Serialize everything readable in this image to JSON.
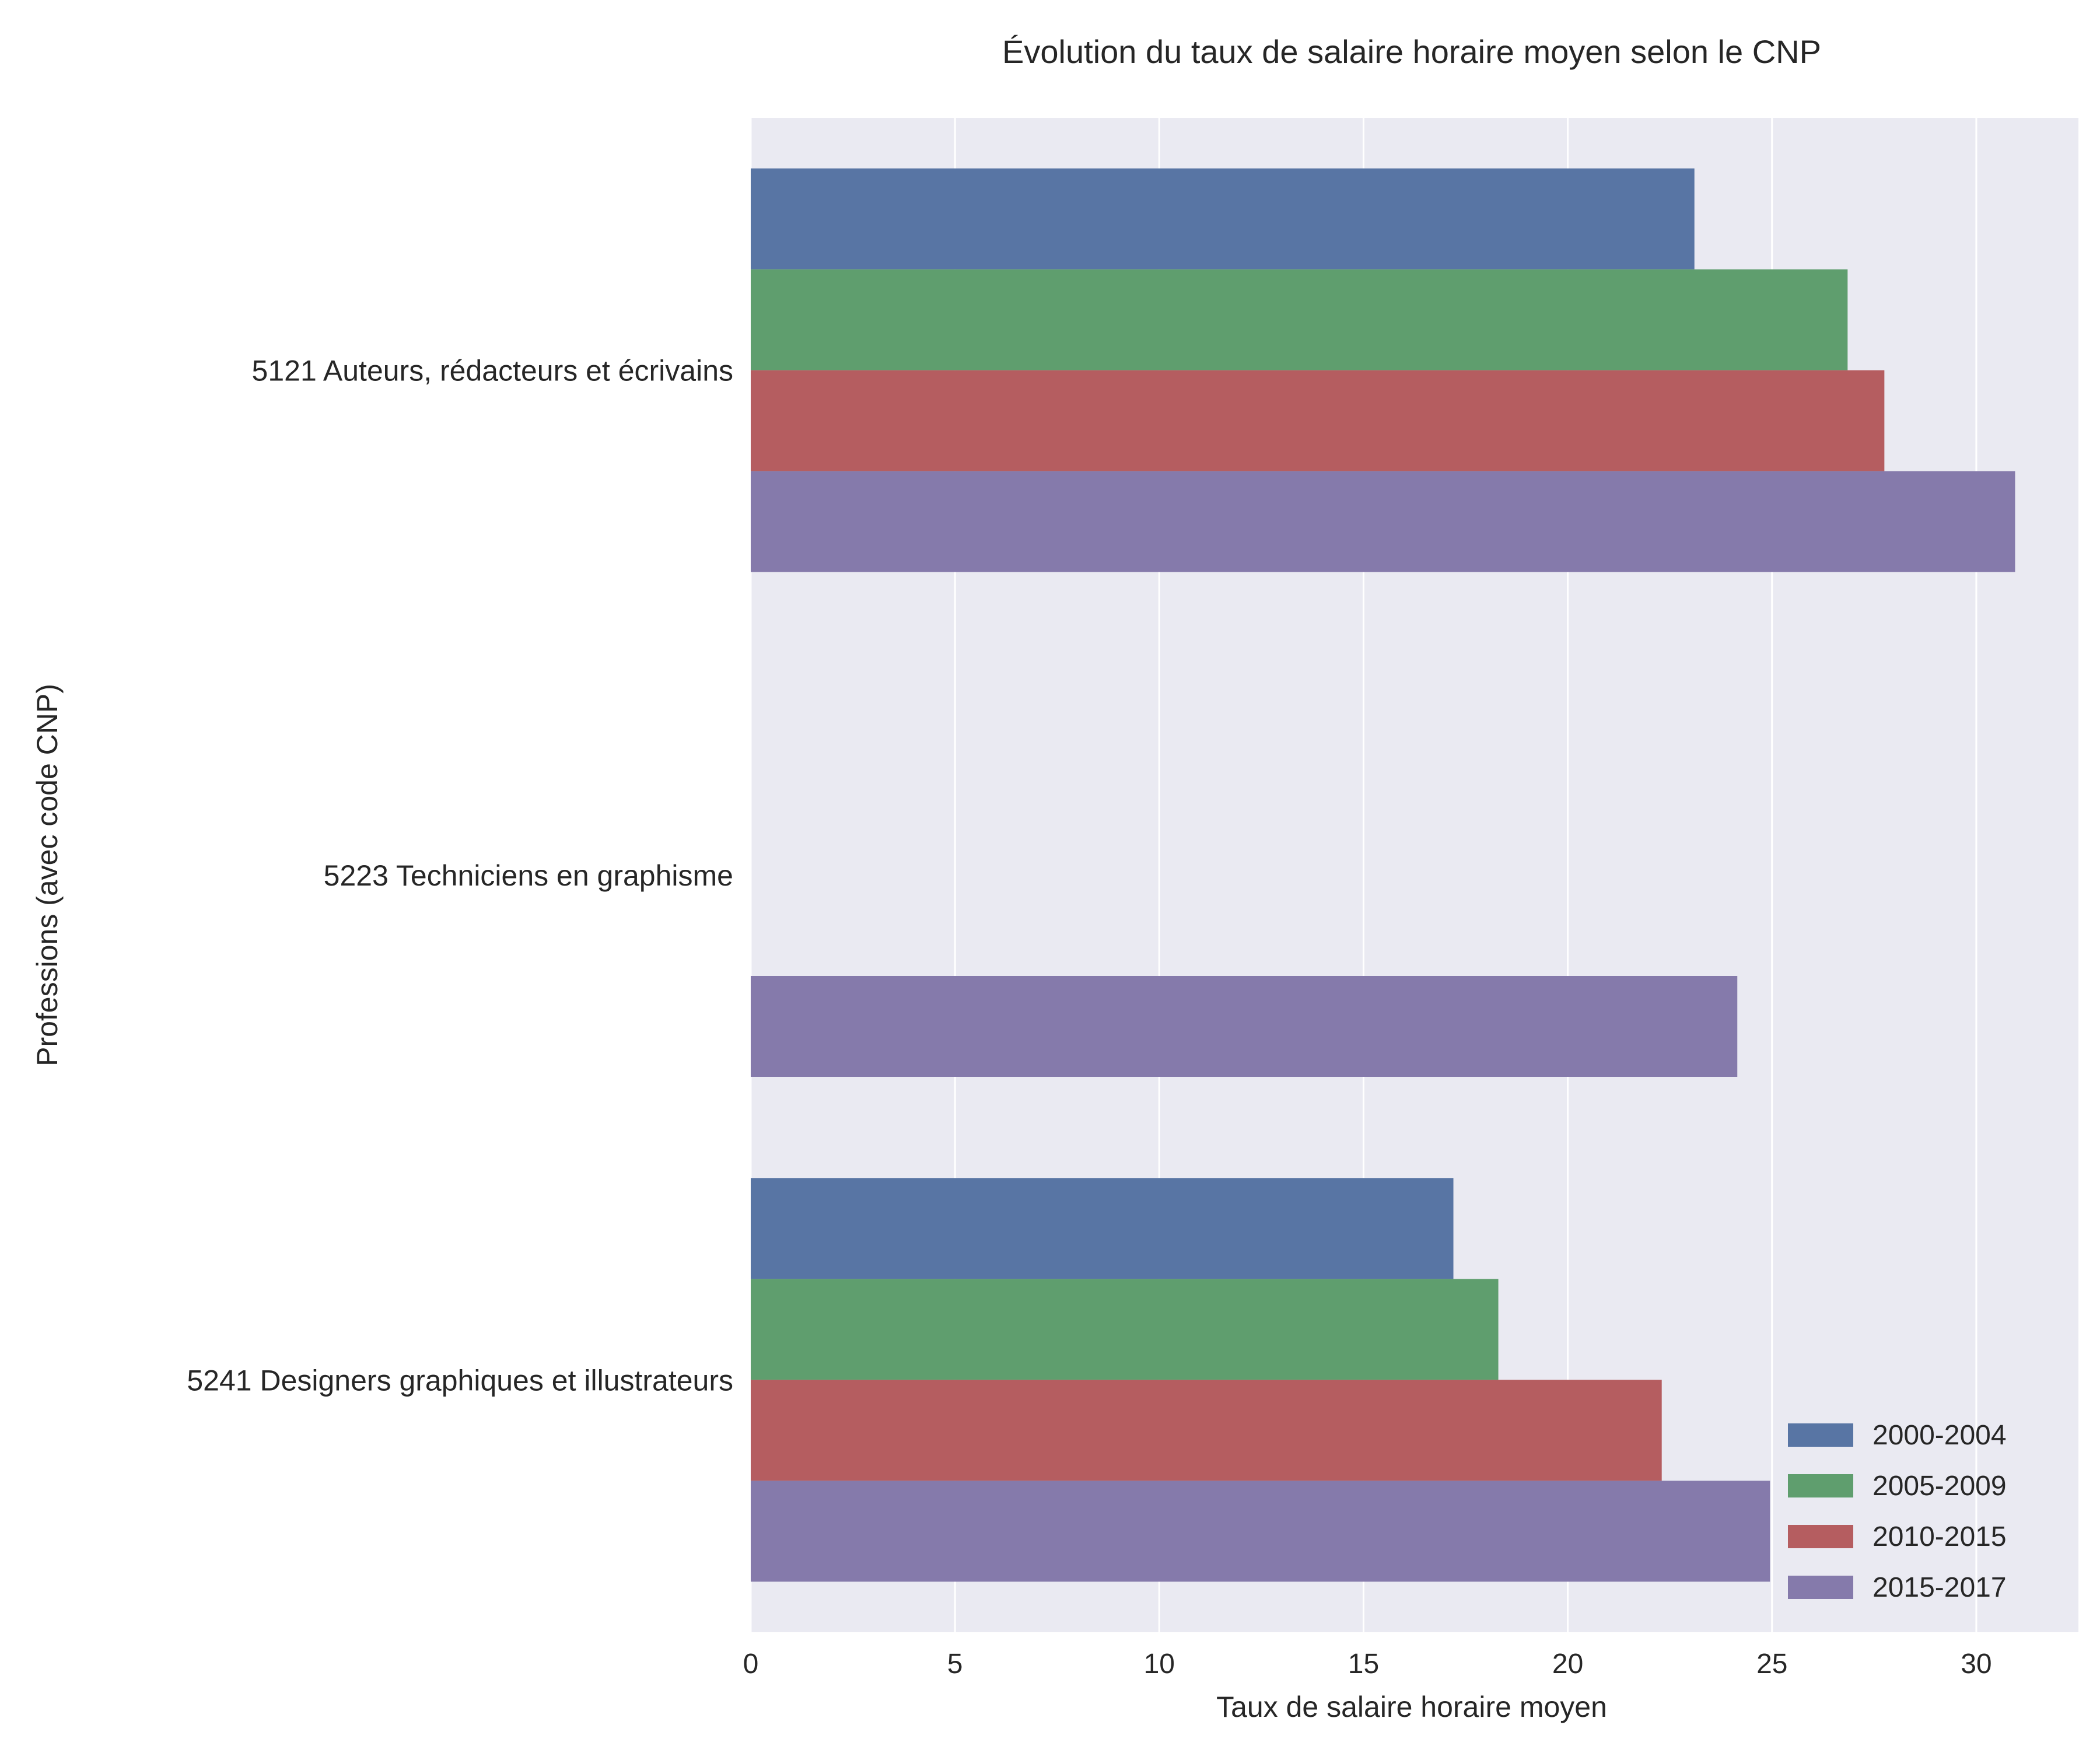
{
  "chart_data": {
    "type": "bar",
    "orientation": "horizontal",
    "title": "Évolution du taux de salaire horaire moyen selon le CNP",
    "xlabel": "Taux de salaire horaire moyen",
    "ylabel": "Professions (avec code CNP)",
    "xlim": [
      0,
      32.5
    ],
    "xticks": [
      "0",
      "5",
      "10",
      "15",
      "20",
      "25",
      "30"
    ],
    "grid": true,
    "legend_position": "lower-right",
    "categories": [
      "5121 Auteurs, rédacteurs et écrivains",
      "5223 Techniciens en graphisme",
      "5241 Designers graphiques et illustrateurs"
    ],
    "series": [
      {
        "name": "2000-2004",
        "color": "#5875a4",
        "values": [
          23.1,
          null,
          17.2
        ]
      },
      {
        "name": "2005-2009",
        "color": "#5f9e6e",
        "values": [
          26.85,
          null,
          18.3
        ]
      },
      {
        "name": "2010-2015",
        "color": "#b55d60",
        "values": [
          27.75,
          null,
          22.3
        ]
      },
      {
        "name": "2015-2017",
        "color": "#857aab",
        "values": [
          30.95,
          24.15,
          24.95
        ]
      }
    ],
    "colors": {
      "plot_background": "#eaeaf2",
      "grid": "#ffffff",
      "text": "#262626"
    }
  }
}
